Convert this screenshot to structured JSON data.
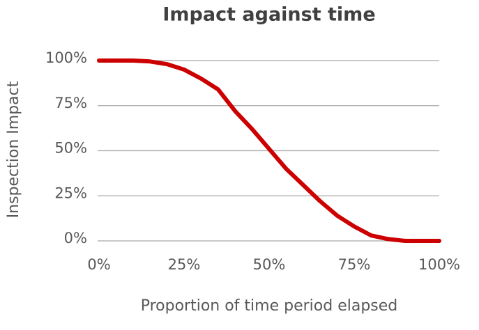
{
  "chart_data": {
    "type": "line",
    "title": "Impact against time",
    "x_label": "Proportion of time period elapsed",
    "y_label": "Inspection Impact",
    "x": [
      0,
      5,
      10,
      15,
      20,
      25,
      30,
      35,
      40,
      45,
      50,
      55,
      60,
      65,
      70,
      75,
      80,
      85,
      90,
      95,
      100
    ],
    "values": [
      100,
      100,
      100,
      99.5,
      98,
      95,
      90,
      84,
      72,
      62,
      51,
      40,
      31,
      22,
      14,
      8,
      3,
      1,
      0,
      0,
      0
    ],
    "color": "#cc0000",
    "xlim": [
      0,
      100
    ],
    "xticks": [
      {
        "value": 0,
        "label": "0%"
      },
      {
        "value": 25,
        "label": "25%"
      },
      {
        "value": 50,
        "label": "50%"
      },
      {
        "value": 75,
        "label": "75%"
      },
      {
        "value": 100,
        "label": "100%"
      }
    ],
    "ylim": [
      0,
      100
    ],
    "yticks": [
      {
        "value": 0,
        "label": "0%"
      },
      {
        "value": 25,
        "label": "25%"
      },
      {
        "value": 50,
        "label": "50%"
      },
      {
        "value": 75,
        "label": "75%"
      },
      {
        "value": 100,
        "label": "100%"
      }
    ],
    "grid": true
  }
}
